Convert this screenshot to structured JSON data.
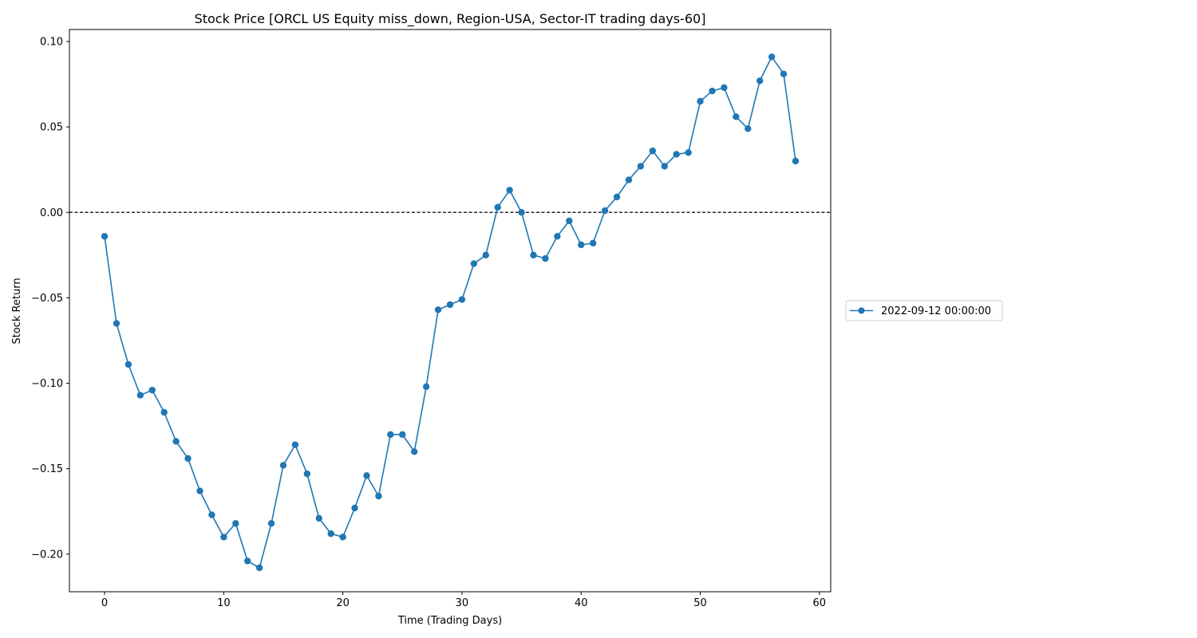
{
  "chart_data": {
    "type": "line",
    "title": "Stock Price [ORCL US Equity miss_down, Region-USA, Sector-IT trading days-60]",
    "xlabel": "Time (Trading Days)",
    "ylabel": "Stock Return",
    "xlim": [
      -2.95,
      60.95
    ],
    "ylim": [
      -0.222,
      0.107
    ],
    "xticks": [
      0,
      10,
      20,
      30,
      40,
      50,
      60
    ],
    "xtick_labels": [
      "0",
      "10",
      "20",
      "30",
      "40",
      "50",
      "60"
    ],
    "yticks": [
      0.1,
      0.05,
      0.0,
      -0.05,
      -0.1,
      -0.15,
      -0.2
    ],
    "ytick_labels": [
      "0.10",
      "0.05",
      "0.00",
      "−0.05",
      "−0.10",
      "−0.15",
      "−0.20"
    ],
    "reference_line": {
      "y": 0,
      "style": "dashed",
      "color": "#000000"
    },
    "grid": false,
    "legend_position": "outside-right",
    "series": [
      {
        "name": "2022-09-12 00:00:00",
        "color": "#1f77b4",
        "marker": "circle",
        "x": [
          0,
          1,
          2,
          3,
          4,
          5,
          6,
          7,
          8,
          9,
          10,
          11,
          12,
          13,
          14,
          15,
          16,
          17,
          18,
          19,
          20,
          21,
          22,
          23,
          24,
          25,
          26,
          27,
          28,
          29,
          30,
          31,
          32,
          33,
          34,
          35,
          36,
          37,
          38,
          39,
          40,
          41,
          42,
          43,
          44,
          45,
          46,
          47,
          48,
          49,
          50,
          51,
          52,
          53,
          54,
          55,
          56,
          57,
          58
        ],
        "y": [
          -0.014,
          -0.065,
          -0.089,
          -0.107,
          -0.104,
          -0.117,
          -0.134,
          -0.144,
          -0.163,
          -0.177,
          -0.19,
          -0.182,
          -0.204,
          -0.208,
          -0.182,
          -0.148,
          -0.136,
          -0.153,
          -0.179,
          -0.188,
          -0.19,
          -0.173,
          -0.154,
          -0.166,
          -0.13,
          -0.13,
          -0.14,
          -0.102,
          -0.057,
          -0.054,
          -0.051,
          -0.03,
          -0.025,
          0.003,
          0.013,
          0.0,
          -0.025,
          -0.027,
          -0.014,
          -0.005,
          -0.019,
          -0.018,
          0.001,
          0.009,
          0.019,
          0.027,
          0.036,
          0.027,
          0.034,
          0.035,
          0.065,
          0.071,
          0.073,
          0.056,
          0.049,
          0.077,
          0.091,
          0.081,
          0.03
        ]
      }
    ]
  }
}
